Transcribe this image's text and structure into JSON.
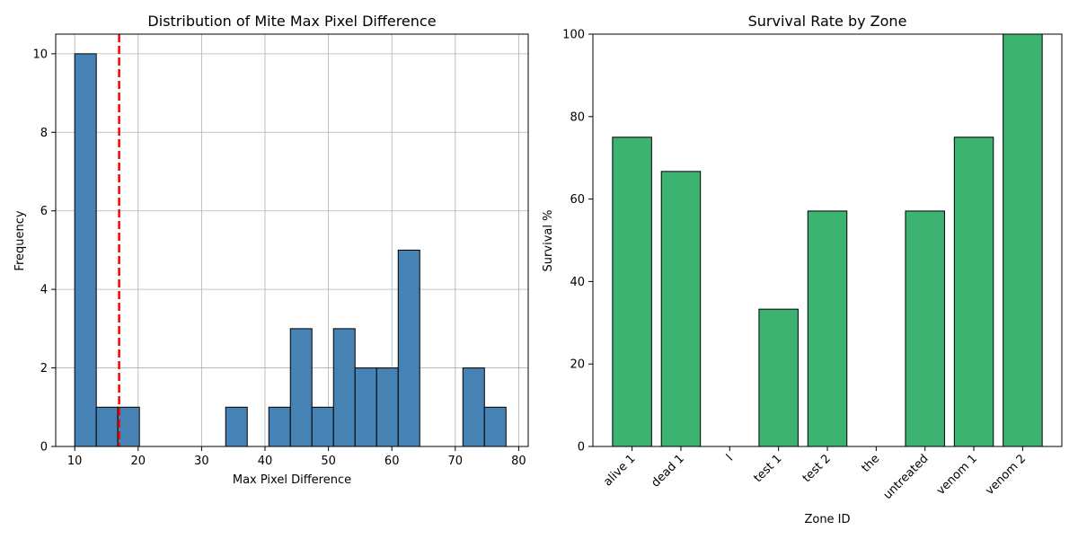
{
  "chart_data": [
    {
      "type": "bar",
      "title": "Distribution of Mite Max Pixel Difference",
      "xlabel": "Max Pixel Difference",
      "ylabel": "Frequency",
      "xlim": [
        7,
        81.5
      ],
      "ylim": [
        0,
        10.5
      ],
      "xticks": [
        10,
        20,
        30,
        40,
        50,
        60,
        70,
        80
      ],
      "yticks": [
        0,
        2,
        4,
        6,
        8,
        10
      ],
      "grid": true,
      "bar_color": "#4682b4",
      "bins": [
        {
          "x0": 10.0,
          "x1": 13.4,
          "count": 10
        },
        {
          "x0": 13.4,
          "x1": 16.8,
          "count": 1
        },
        {
          "x0": 16.8,
          "x1": 20.2,
          "count": 1
        },
        {
          "x0": 20.2,
          "x1": 23.6,
          "count": 0
        },
        {
          "x0": 23.6,
          "x1": 27.0,
          "count": 0
        },
        {
          "x0": 27.0,
          "x1": 30.4,
          "count": 0
        },
        {
          "x0": 30.4,
          "x1": 33.8,
          "count": 0
        },
        {
          "x0": 33.8,
          "x1": 37.2,
          "count": 1
        },
        {
          "x0": 37.2,
          "x1": 40.6,
          "count": 0
        },
        {
          "x0": 40.6,
          "x1": 44.0,
          "count": 1
        },
        {
          "x0": 44.0,
          "x1": 47.4,
          "count": 3
        },
        {
          "x0": 47.4,
          "x1": 50.8,
          "count": 1
        },
        {
          "x0": 50.8,
          "x1": 54.2,
          "count": 3
        },
        {
          "x0": 54.2,
          "x1": 57.6,
          "count": 2
        },
        {
          "x0": 57.6,
          "x1": 61.0,
          "count": 2
        },
        {
          "x0": 61.0,
          "x1": 64.4,
          "count": 5
        },
        {
          "x0": 64.4,
          "x1": 67.8,
          "count": 0
        },
        {
          "x0": 67.8,
          "x1": 71.2,
          "count": 0
        },
        {
          "x0": 71.2,
          "x1": 74.6,
          "count": 2
        },
        {
          "x0": 74.6,
          "x1": 78.0,
          "count": 1
        }
      ],
      "threshold_line": {
        "x": 17,
        "color": "#ff0000",
        "style": "dashed"
      }
    },
    {
      "type": "bar",
      "title": "Survival Rate by Zone",
      "xlabel": "Zone ID",
      "ylabel": "Survival %",
      "ylim": [
        0,
        100
      ],
      "yticks": [
        0,
        20,
        40,
        60,
        80,
        100
      ],
      "grid": false,
      "bar_color": "#3cb371",
      "categories": [
        "alive 1",
        "dead 1",
        "l",
        "test 1",
        "test 2",
        "the",
        "untreated",
        "venom 1",
        "venom 2"
      ],
      "values": [
        75,
        66.7,
        0,
        33.3,
        57.1,
        0,
        57.1,
        75,
        100
      ]
    }
  ]
}
